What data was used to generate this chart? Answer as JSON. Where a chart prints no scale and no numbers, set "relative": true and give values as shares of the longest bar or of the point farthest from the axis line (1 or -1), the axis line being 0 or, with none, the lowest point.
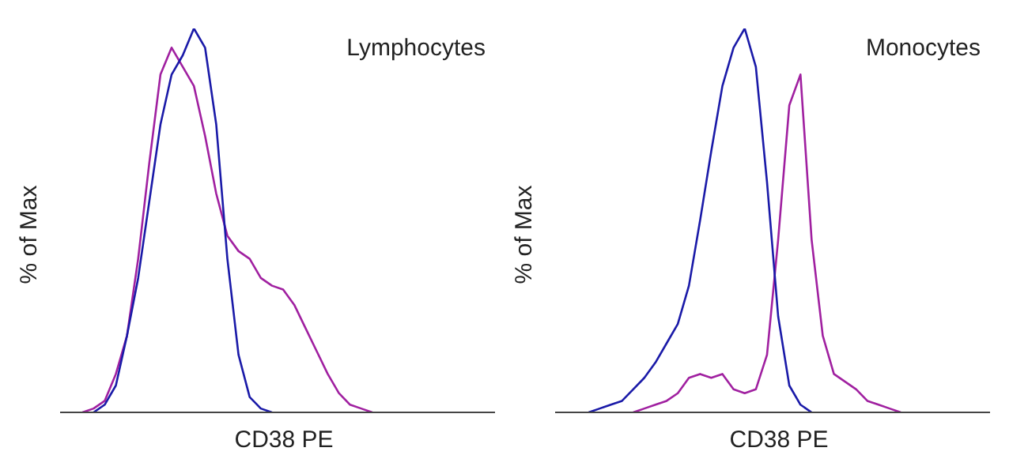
{
  "chart_data": [
    {
      "type": "line",
      "relative": true,
      "xlabel": "CD38 PE",
      "ylabel": "% of Max",
      "annotations": [
        "Lymphocytes"
      ],
      "marker": "none",
      "line_style": "solid",
      "categories": [
        null,
        null,
        null,
        null,
        null,
        null,
        null,
        null,
        null,
        null,
        null,
        null,
        null,
        null,
        null,
        null,
        null,
        null,
        null,
        null,
        null,
        null,
        null,
        null,
        null,
        null,
        null,
        null,
        null,
        null,
        null,
        null,
        null,
        null,
        null,
        null,
        null,
        null,
        null,
        null
      ],
      "series": [
        {
          "color": "#a020a0",
          "values": [
            null,
            null,
            0,
            0.01,
            0.03,
            0.1,
            0.2,
            0.4,
            0.65,
            0.88,
            0.95,
            0.9,
            0.85,
            0.72,
            0.57,
            0.46,
            0.42,
            0.4,
            0.35,
            0.33,
            0.32,
            0.28,
            0.22,
            0.16,
            0.1,
            0.05,
            0.02,
            0.01,
            0,
            null,
            null,
            null,
            null,
            null,
            null,
            null,
            null,
            null,
            null,
            null
          ]
        },
        {
          "color": "#1a1aa8",
          "values": [
            null,
            null,
            null,
            0,
            0.02,
            0.07,
            0.2,
            0.35,
            0.55,
            0.75,
            0.88,
            0.93,
            1,
            0.95,
            0.75,
            0.4,
            0.15,
            0.04,
            0.01,
            0,
            null,
            null,
            null,
            null,
            null,
            null,
            null,
            null,
            null,
            null,
            null,
            null,
            null,
            null,
            null,
            null,
            null,
            null,
            null,
            null
          ]
        }
      ]
    },
    {
      "type": "line",
      "relative": true,
      "xlabel": "CD38 PE",
      "ylabel": "% of Max",
      "annotations": [
        "Monocytes"
      ],
      "marker": "none",
      "line_style": "solid",
      "categories": [
        null,
        null,
        null,
        null,
        null,
        null,
        null,
        null,
        null,
        null,
        null,
        null,
        null,
        null,
        null,
        null,
        null,
        null,
        null,
        null,
        null,
        null,
        null,
        null,
        null,
        null,
        null,
        null,
        null,
        null,
        null,
        null,
        null,
        null,
        null,
        null,
        null,
        null,
        null,
        null
      ],
      "series": [
        {
          "color": "#a020a0",
          "values": [
            null,
            null,
            null,
            null,
            null,
            null,
            null,
            0,
            0.01,
            0.02,
            0.03,
            0.05,
            0.09,
            0.1,
            0.09,
            0.1,
            0.06,
            0.05,
            0.06,
            0.15,
            0.45,
            0.8,
            0.88,
            0.45,
            0.2,
            0.1,
            0.08,
            0.06,
            0.03,
            0.02,
            0.01,
            0,
            null,
            null,
            null,
            null,
            null,
            null,
            null,
            null
          ]
        },
        {
          "color": "#1a1aa8",
          "values": [
            null,
            null,
            null,
            0,
            0.01,
            0.02,
            0.03,
            0.06,
            0.09,
            0.13,
            0.18,
            0.23,
            0.33,
            0.5,
            0.68,
            0.85,
            0.95,
            1,
            0.9,
            0.6,
            0.25,
            0.07,
            0.02,
            0,
            null,
            null,
            null,
            null,
            null,
            null,
            null,
            null,
            null,
            null,
            null,
            null,
            null,
            null,
            null,
            null
          ]
        }
      ]
    }
  ]
}
